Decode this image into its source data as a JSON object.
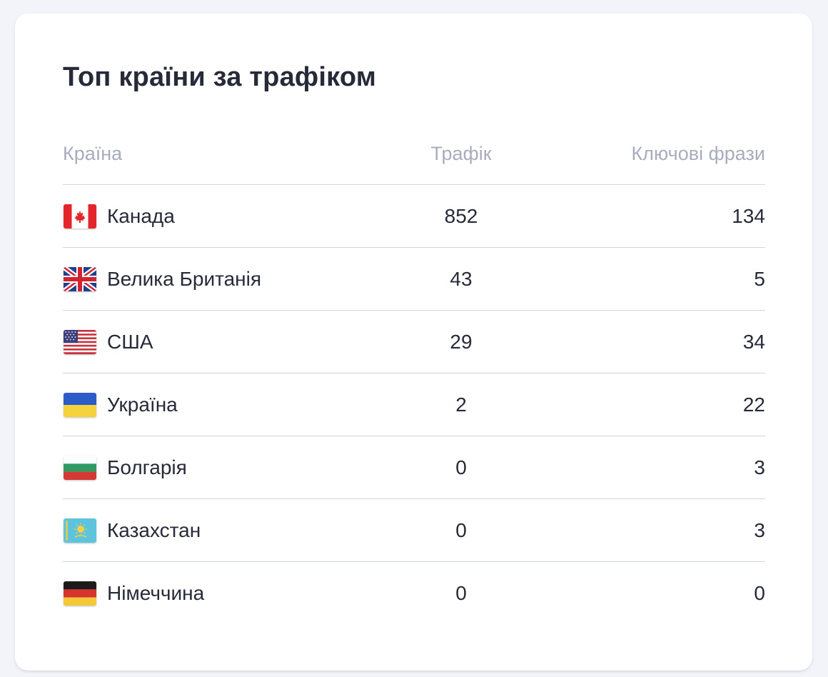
{
  "card": {
    "title": "Топ країни за трафіком"
  },
  "table": {
    "columns": {
      "country": "Країна",
      "traffic": "Трафік",
      "phrases": "Ключові фрази"
    },
    "rows": [
      {
        "flag_icon": "canada-flag-icon",
        "country": "Канада",
        "traffic": "852",
        "phrases": "134"
      },
      {
        "flag_icon": "uk-flag-icon",
        "country": "Велика Британія",
        "traffic": "43",
        "phrases": "5"
      },
      {
        "flag_icon": "usa-flag-icon",
        "country": "США",
        "traffic": "29",
        "phrases": "34"
      },
      {
        "flag_icon": "ukraine-flag-icon",
        "country": "Україна",
        "traffic": "2",
        "phrases": "22"
      },
      {
        "flag_icon": "bulgaria-flag-icon",
        "country": "Болгарія",
        "traffic": "0",
        "phrases": "3"
      },
      {
        "flag_icon": "kazakhstan-flag-icon",
        "country": "Казахстан",
        "traffic": "0",
        "phrases": "3"
      },
      {
        "flag_icon": "germany-flag-icon",
        "country": "Німеччина",
        "traffic": "0",
        "phrases": "0"
      }
    ]
  },
  "colors": {
    "background": "#f3f4f9",
    "card": "#ffffff",
    "text": "#272a38",
    "header_text": "#a8acbd",
    "divider": "#d2d5e0"
  }
}
